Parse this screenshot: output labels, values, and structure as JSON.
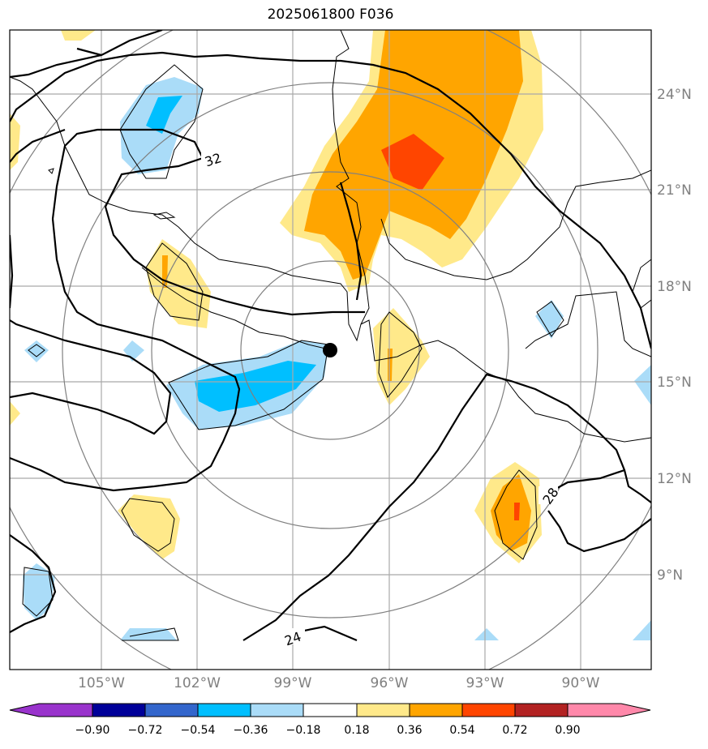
{
  "title": "2025061800 F036",
  "colors": {
    "neg_090": "#9933cc",
    "neg_072": "#000099",
    "neg_054": "#3366cc",
    "neg_036": "#00bfff",
    "neg_018": "#aadcf8",
    "zero": "#ffffff",
    "pos_018": "#ffe98a",
    "pos_036": "#ffa500",
    "pos_054": "#ff4500",
    "pos_072": "#b22222",
    "pos_090": "#ff88aa",
    "grid": "#a9a9a9",
    "range_rings": "#808080",
    "contour": "#000000",
    "coast": "#000000",
    "label": "#808080"
  },
  "map": {
    "lon_labels": [
      "105°W",
      "102°W",
      "99°W",
      "96°W",
      "93°W",
      "90°W"
    ],
    "lat_labels": [
      "24°N",
      "21°N",
      "18°N",
      "15°N",
      "12°N",
      "9°N"
    ],
    "contour_labels": [
      "32",
      "28",
      "24"
    ],
    "center_marker": "storm-center-dot"
  },
  "colorbar": {
    "ticks": [
      "−0.90",
      "−0.72",
      "−0.54",
      "−0.36",
      "−0.18",
      "0.18",
      "0.36",
      "0.54",
      "0.72",
      "0.90"
    ]
  }
}
